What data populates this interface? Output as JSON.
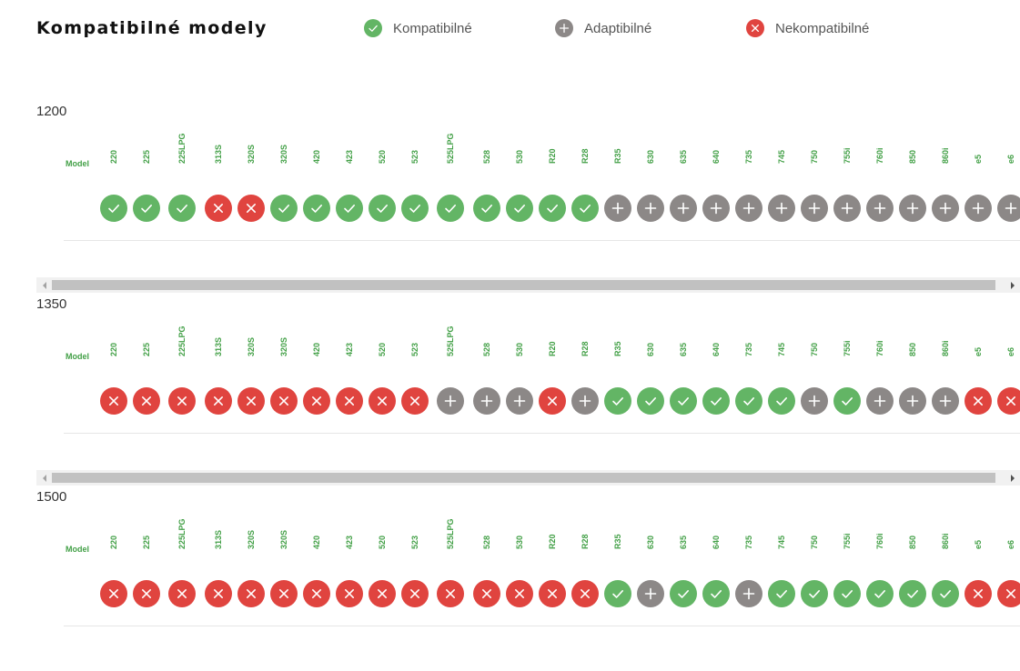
{
  "page_title": "Kompatibilné modely",
  "legend": [
    {
      "key": "ok",
      "label": "Kompatibilné",
      "icon": "check-icon",
      "color": "#63b565"
    },
    {
      "key": "ad",
      "label": "Adaptibilné",
      "icon": "plus-icon",
      "color": "#8c8887"
    },
    {
      "key": "no",
      "label": "Nekompatibilné",
      "icon": "cross-icon",
      "color": "#e0443f"
    }
  ],
  "model_header": "Model",
  "models": [
    "220",
    "225",
    "225LPG",
    "313S",
    "320S",
    "320S",
    "420",
    "423",
    "520",
    "523",
    "525LPG",
    "528",
    "530",
    "R20",
    "R28",
    "R35",
    "630",
    "635",
    "640",
    "735",
    "745",
    "750",
    "755i",
    "760i",
    "850",
    "860i",
    "e5",
    "e6"
  ],
  "sections": [
    {
      "title": "1200",
      "statuses": [
        "ok",
        "ok",
        "ok",
        "no",
        "no",
        "ok",
        "ok",
        "ok",
        "ok",
        "ok",
        "ok",
        "ok",
        "ok",
        "ok",
        "ok",
        "ad",
        "ad",
        "ad",
        "ad",
        "ad",
        "ad",
        "ad",
        "ad",
        "ad",
        "ad",
        "ad",
        "ad",
        "ad"
      ]
    },
    {
      "title": "1350",
      "statuses": [
        "no",
        "no",
        "no",
        "no",
        "no",
        "no",
        "no",
        "no",
        "no",
        "no",
        "ad",
        "ad",
        "ad",
        "no",
        "ad",
        "ok",
        "ok",
        "ok",
        "ok",
        "ok",
        "ok",
        "ad",
        "ok",
        "ad",
        "ad",
        "ad",
        "no",
        "no"
      ]
    },
    {
      "title": "1500",
      "statuses": [
        "no",
        "no",
        "no",
        "no",
        "no",
        "no",
        "no",
        "no",
        "no",
        "no",
        "no",
        "no",
        "no",
        "no",
        "no",
        "ok",
        "ad",
        "ok",
        "ok",
        "ad",
        "ok",
        "ok",
        "ok",
        "ok",
        "ok",
        "ok",
        "no",
        "no"
      ]
    }
  ]
}
